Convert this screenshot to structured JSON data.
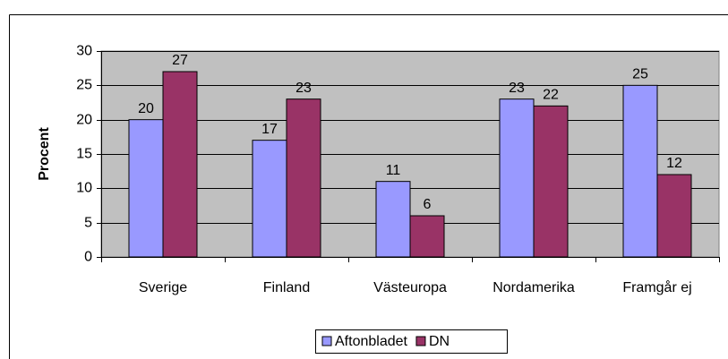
{
  "chart_data": {
    "type": "bar",
    "y_label": "Procent",
    "categories": [
      "Sverige",
      "Finland",
      "Västeuropa",
      "Nordamerika",
      "Framgår ej"
    ],
    "series": [
      {
        "name": "Aftonbladet",
        "color": "#9999ff",
        "values": [
          20,
          17,
          11,
          23,
          25
        ]
      },
      {
        "name": "DN",
        "color": "#993366",
        "values": [
          27,
          23,
          6,
          22,
          12
        ]
      }
    ],
    "ylim": [
      0,
      30
    ],
    "yticks": [
      0,
      5,
      10,
      15,
      20,
      25,
      30
    ],
    "grid": true,
    "legend": "bottom"
  }
}
